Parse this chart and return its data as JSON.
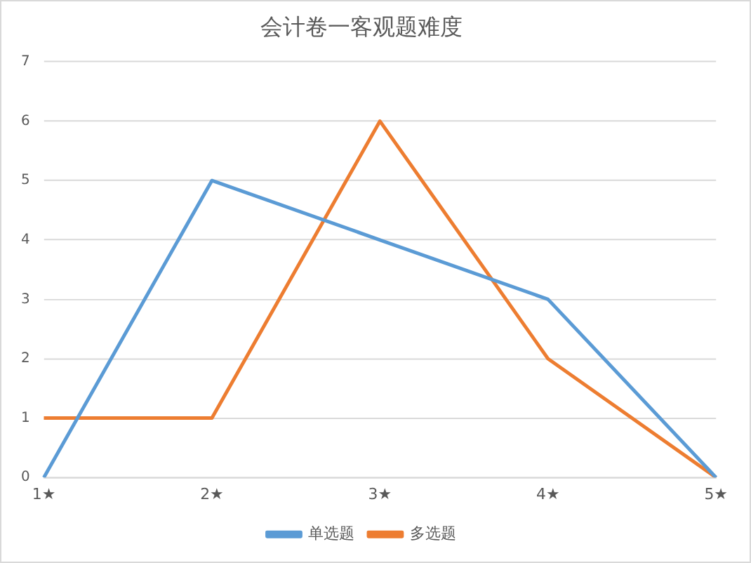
{
  "chart_data": {
    "type": "line",
    "title": "会计卷一客观题难度",
    "categories": [
      "1★",
      "2★",
      "3★",
      "4★",
      "5★"
    ],
    "series": [
      {
        "name": "单选题",
        "color": "#5b9bd5",
        "values": [
          0,
          5,
          4,
          3,
          0
        ]
      },
      {
        "name": "多选题",
        "color": "#ed7d31",
        "values": [
          1,
          1,
          6,
          2,
          0
        ]
      }
    ],
    "ylim": [
      0,
      7
    ],
    "yticks": [
      0,
      1,
      2,
      3,
      4,
      5,
      6,
      7
    ],
    "grid": "y",
    "legend": "bottom",
    "marker": "none",
    "line_style": "solid"
  }
}
